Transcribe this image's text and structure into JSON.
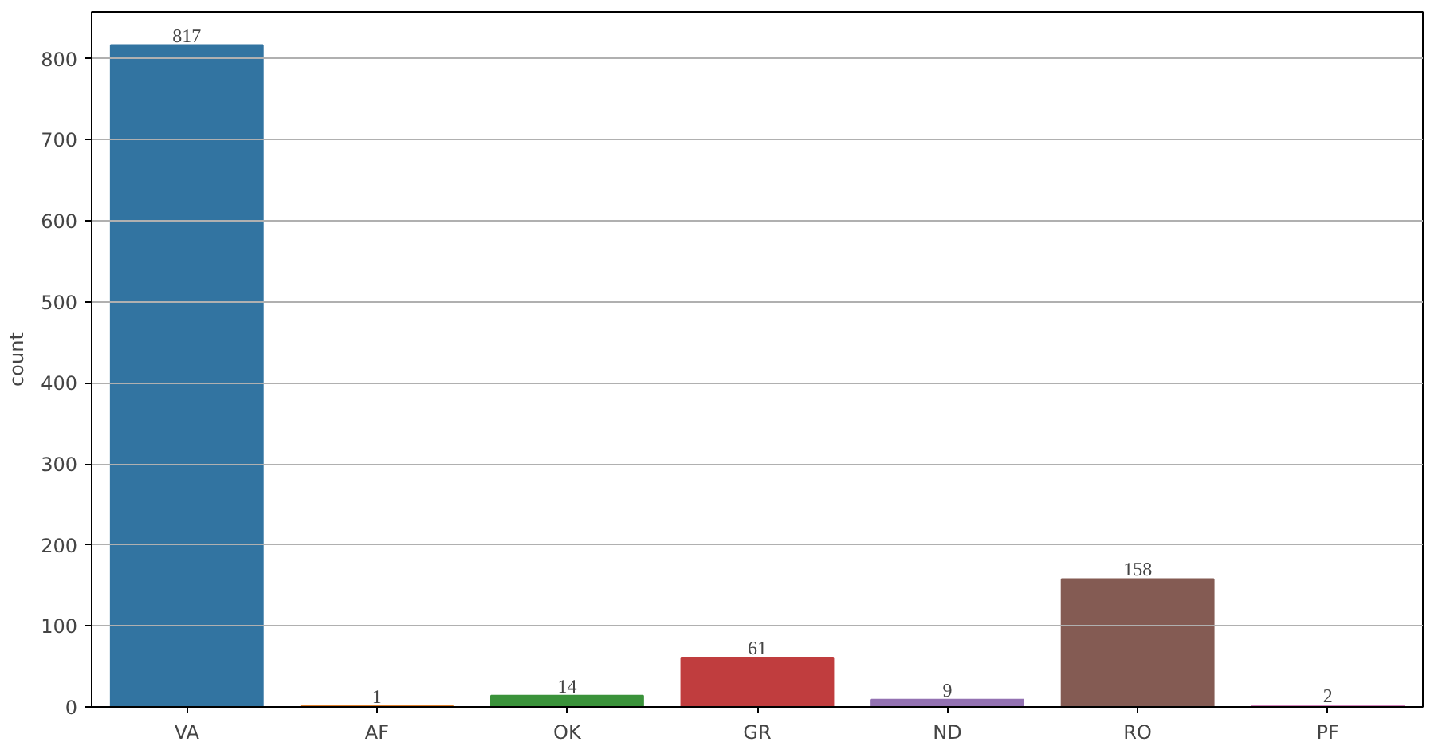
{
  "chart_data": {
    "type": "bar",
    "ylabel": "count",
    "categories": [
      "VA",
      "AF",
      "OK",
      "GR",
      "ND",
      "RO",
      "PF"
    ],
    "values": [
      817,
      1,
      14,
      61,
      9,
      158,
      2
    ],
    "colors": [
      "#3274a1",
      "#e1812c",
      "#3a923a",
      "#c03d3e",
      "#9372b2",
      "#845b53",
      "#d684bd"
    ],
    "ylim": [
      0,
      857.85
    ],
    "yticks": [
      0,
      100,
      200,
      300,
      400,
      500,
      600,
      700,
      800
    ],
    "grid": "y",
    "data_labels": true
  }
}
